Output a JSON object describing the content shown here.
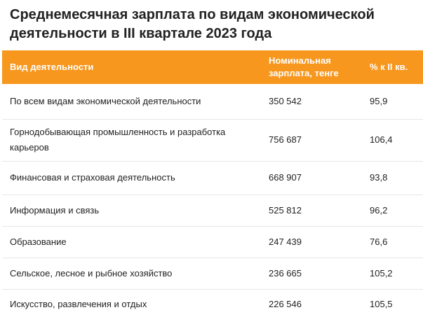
{
  "title": "Среднемесячная зарплата по видам экономической деятельности в III квартале 2023 года",
  "table": {
    "header": [
      "Вид деятельности",
      "Номинальная зарплата, тенге",
      "% к II кв."
    ],
    "rows": [
      [
        "По всем видам экономической деятельности",
        "350 542",
        "95,9"
      ],
      [
        "Горнодобывающая промышленность и разработка карьеров",
        "756 687",
        "106,4"
      ],
      [
        "Финансовая и страховая деятельность",
        "668 907",
        "93,8"
      ],
      [
        "Информация и связь",
        "525 812",
        "96,2"
      ],
      [
        "Образование",
        "247 439",
        "76,6"
      ],
      [
        "Сельское, лесное и рыбное хозяйство",
        "236 665",
        "105,2"
      ],
      [
        "Искусство, развлечения и отдых",
        "226 546",
        "105,5"
      ]
    ]
  }
}
